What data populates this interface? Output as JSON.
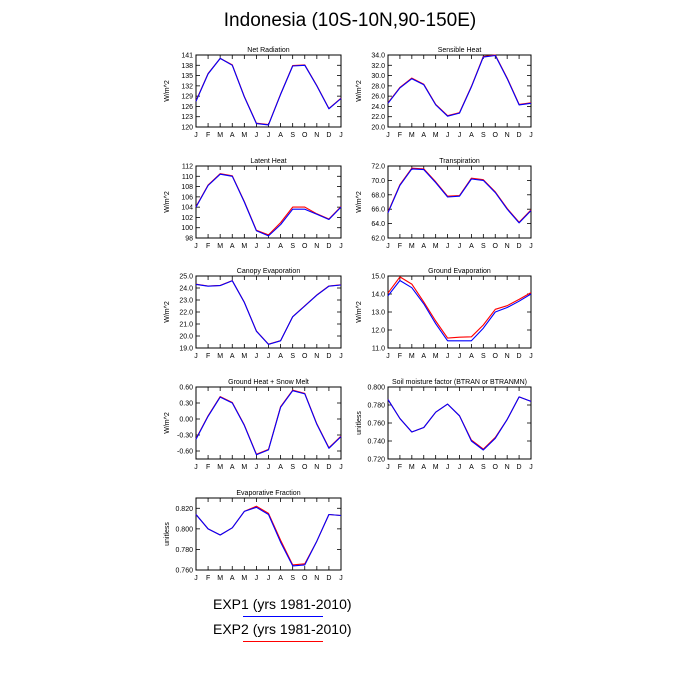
{
  "page": {
    "title": "Indonesia (10S-10N,90-150E)"
  },
  "legend": {
    "items": [
      {
        "label": "EXP1 (yrs 1981-2010)",
        "color": "#0000ff"
      },
      {
        "label": "EXP2 (yrs 1981-2010)",
        "color": "#ff0000"
      }
    ]
  },
  "colors": {
    "exp1": "#0000ff",
    "exp2": "#ff0000"
  },
  "chart_data": [
    {
      "type": "line",
      "title": "Net Radiation",
      "ylabel": "W/m^2",
      "x": [
        "J",
        "F",
        "M",
        "A",
        "M",
        "J",
        "J",
        "A",
        "S",
        "O",
        "N",
        "D",
        "J"
      ],
      "ylim": [
        120,
        141
      ],
      "yticks": [
        "120",
        "123",
        "126",
        "129",
        "132",
        "135",
        "138",
        "141"
      ],
      "series": [
        {
          "name": "EXP1 (yrs 1981-2010)",
          "values": [
            127.5,
            135.5,
            140,
            138,
            128.8,
            121,
            120.6,
            129.5,
            137.8,
            138,
            132,
            125.3,
            128.3
          ]
        },
        {
          "name": "EXP2 (yrs 1981-2010)",
          "values": [
            127.6,
            135.6,
            140,
            138.1,
            128.9,
            121.1,
            120.7,
            129.6,
            137.9,
            138.1,
            132.1,
            125.4,
            128.4
          ]
        }
      ]
    },
    {
      "type": "line",
      "title": "Sensible Heat",
      "ylabel": "W/m^2",
      "x": [
        "J",
        "F",
        "M",
        "A",
        "M",
        "J",
        "J",
        "A",
        "S",
        "O",
        "N",
        "D",
        "J"
      ],
      "ylim": [
        20,
        34
      ],
      "yticks": [
        "20.0",
        "22.0",
        "24.0",
        "26.0",
        "28.0",
        "30.0",
        "32.0",
        "34.0"
      ],
      "series": [
        {
          "name": "EXP1 (yrs 1981-2010)",
          "values": [
            24.6,
            27.6,
            29.4,
            28.2,
            24.3,
            22.1,
            22.7,
            27.8,
            33.6,
            33.9,
            29.4,
            24.3,
            24.6
          ]
        },
        {
          "name": "EXP2 (yrs 1981-2010)",
          "values": [
            24.7,
            27.7,
            29.5,
            28.3,
            24.4,
            22.2,
            22.8,
            27.9,
            33.7,
            34.0,
            29.5,
            24.4,
            24.7
          ]
        }
      ]
    },
    {
      "type": "line",
      "title": "Latent Heat",
      "ylabel": "W/m^2",
      "x": [
        "J",
        "F",
        "M",
        "A",
        "M",
        "J",
        "J",
        "A",
        "S",
        "O",
        "N",
        "D",
        "J"
      ],
      "ylim": [
        98,
        112
      ],
      "yticks": [
        "98",
        "100",
        "102",
        "104",
        "106",
        "108",
        "110",
        "112"
      ],
      "series": [
        {
          "name": "EXP1 (yrs 1981-2010)",
          "values": [
            104,
            108.2,
            110.4,
            110,
            105,
            99.4,
            98.4,
            100.6,
            103.6,
            103.6,
            102.6,
            101.6,
            104
          ]
        },
        {
          "name": "EXP2 (yrs 1981-2010)",
          "values": [
            104.1,
            108.3,
            110.5,
            110.1,
            105.1,
            99.5,
            98.6,
            101,
            104,
            104,
            102.7,
            101.7,
            104.1
          ]
        }
      ]
    },
    {
      "type": "line",
      "title": "Transpiration",
      "ylabel": "W/m^2",
      "x": [
        "J",
        "F",
        "M",
        "A",
        "M",
        "J",
        "J",
        "A",
        "S",
        "O",
        "N",
        "D",
        "J"
      ],
      "ylim": [
        62,
        72
      ],
      "yticks": [
        "62.0",
        "64.0",
        "66.0",
        "68.0",
        "70.0",
        "72.0"
      ],
      "series": [
        {
          "name": "EXP1 (yrs 1981-2010)",
          "values": [
            65.5,
            69.3,
            71.6,
            71.5,
            69.7,
            67.7,
            67.8,
            70.2,
            70,
            68.3,
            66,
            64.1,
            65.8
          ]
        },
        {
          "name": "EXP2 (yrs 1981-2010)",
          "values": [
            65.6,
            69.4,
            71.7,
            71.6,
            69.8,
            67.8,
            67.9,
            70.3,
            70.1,
            68.4,
            66.1,
            64.2,
            65.9
          ]
        }
      ]
    },
    {
      "type": "line",
      "title": "Canopy Evaporation",
      "ylabel": "W/m^2",
      "x": [
        "J",
        "F",
        "M",
        "A",
        "M",
        "J",
        "J",
        "A",
        "S",
        "O",
        "N",
        "D",
        "J"
      ],
      "ylim": [
        19,
        25
      ],
      "yticks": [
        "19.0",
        "20.0",
        "21.0",
        "22.0",
        "23.0",
        "24.0",
        "25.0"
      ],
      "series": [
        {
          "name": "EXP1 (yrs 1981-2010)",
          "values": [
            24.3,
            24.15,
            24.2,
            24.6,
            22.8,
            20.4,
            19.3,
            19.6,
            21.6,
            22.5,
            23.4,
            24.15,
            24.25
          ]
        },
        {
          "name": "EXP2 (yrs 1981-2010)",
          "values": [
            24.32,
            24.17,
            24.22,
            24.62,
            22.82,
            20.42,
            19.32,
            19.62,
            21.62,
            22.52,
            23.42,
            24.17,
            24.27
          ]
        }
      ]
    },
    {
      "type": "line",
      "title": "Ground Evaporation",
      "ylabel": "W/m^2",
      "x": [
        "J",
        "F",
        "M",
        "A",
        "M",
        "J",
        "J",
        "A",
        "S",
        "O",
        "N",
        "D",
        "J"
      ],
      "ylim": [
        11,
        15
      ],
      "yticks": [
        "11.0",
        "12.0",
        "13.0",
        "14.0",
        "15.0"
      ],
      "series": [
        {
          "name": "EXP1 (yrs 1981-2010)",
          "values": [
            13.9,
            14.75,
            14.35,
            13.45,
            12.35,
            11.4,
            11.4,
            11.4,
            12.1,
            13.0,
            13.25,
            13.6,
            14.0
          ]
        },
        {
          "name": "EXP2 (yrs 1981-2010)",
          "values": [
            14.05,
            14.95,
            14.55,
            13.55,
            12.5,
            11.55,
            11.6,
            11.62,
            12.28,
            13.15,
            13.35,
            13.7,
            14.08
          ]
        }
      ]
    },
    {
      "type": "line",
      "title": "Ground Heat + Snow Melt",
      "ylabel": "W/m^2",
      "x": [
        "J",
        "F",
        "M",
        "A",
        "M",
        "J",
        "J",
        "A",
        "S",
        "O",
        "N",
        "D",
        "J"
      ],
      "ylim": [
        -0.75,
        0.6
      ],
      "yticks": [
        "-0.60",
        "-0.30",
        "0.00",
        "0.30",
        "0.60"
      ],
      "series": [
        {
          "name": "EXP1 (yrs 1981-2010)",
          "values": [
            -0.38,
            0.05,
            0.41,
            0.3,
            -0.12,
            -0.67,
            -0.58,
            0.22,
            0.53,
            0.47,
            -0.1,
            -0.55,
            -0.33
          ]
        },
        {
          "name": "EXP2 (yrs 1981-2010)",
          "values": [
            -0.37,
            0.06,
            0.42,
            0.31,
            -0.11,
            -0.66,
            -0.57,
            0.23,
            0.54,
            0.48,
            -0.09,
            -0.54,
            -0.32
          ]
        }
      ]
    },
    {
      "type": "line",
      "title": "Soil moisture factor (BTRAN or BTRANMN)",
      "ylabel": "unitless",
      "x": [
        "J",
        "F",
        "M",
        "A",
        "M",
        "J",
        "J",
        "A",
        "S",
        "O",
        "N",
        "D",
        "J"
      ],
      "ylim": [
        0.72,
        0.8
      ],
      "yticks": [
        "0.720",
        "0.740",
        "0.760",
        "0.780",
        "0.800"
      ],
      "series": [
        {
          "name": "EXP1 (yrs 1981-2010)",
          "values": [
            0.786,
            0.765,
            0.75,
            0.755,
            0.772,
            0.781,
            0.768,
            0.74,
            0.73,
            0.743,
            0.764,
            0.789,
            0.784
          ]
        },
        {
          "name": "EXP2 (yrs 1981-2010)",
          "values": [
            0.786,
            0.765,
            0.75,
            0.755,
            0.772,
            0.781,
            0.768,
            0.741,
            0.731,
            0.744,
            0.764,
            0.789,
            0.784
          ]
        }
      ]
    },
    {
      "type": "line",
      "title": "Evaporative Fraction",
      "ylabel": "unitless",
      "x": [
        "J",
        "F",
        "M",
        "A",
        "M",
        "J",
        "J",
        "A",
        "S",
        "O",
        "N",
        "D",
        "J"
      ],
      "ylim": [
        0.76,
        0.83
      ],
      "yticks": [
        "0.760",
        "0.780",
        "0.800",
        "0.820"
      ],
      "series": [
        {
          "name": "EXP1 (yrs 1981-2010)",
          "values": [
            0.814,
            0.8,
            0.794,
            0.801,
            0.817,
            0.821,
            0.814,
            0.787,
            0.764,
            0.765,
            0.788,
            0.814,
            0.813
          ]
        },
        {
          "name": "EXP2 (yrs 1981-2010)",
          "values": [
            0.814,
            0.8,
            0.794,
            0.801,
            0.817,
            0.822,
            0.815,
            0.789,
            0.765,
            0.766,
            0.788,
            0.814,
            0.813
          ]
        }
      ]
    }
  ]
}
